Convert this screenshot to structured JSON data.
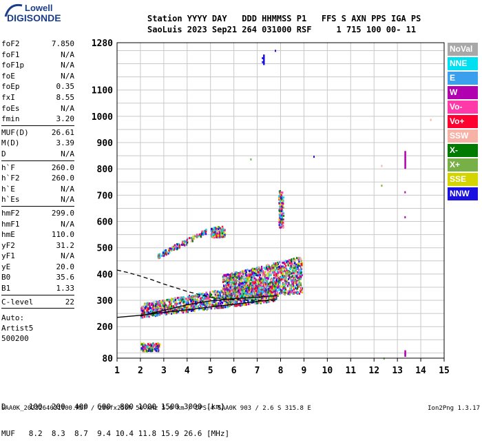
{
  "logo": {
    "line1": "Lowell",
    "line2": "DIGISONDE"
  },
  "header": {
    "line1": "Station YYYY DAY   DDD HHMMSS P1   FFS S AXN PPS IGA PS",
    "line2": "SaoLuis 2023 Sep21 264 031000 RSF     1 715 100 00- 11"
  },
  "params": [
    {
      "label": "foF2",
      "value": "7.850"
    },
    {
      "label": "foF1",
      "value": "N/A"
    },
    {
      "label": "foF1p",
      "value": "N/A"
    },
    {
      "label": "foE",
      "value": "N/A"
    },
    {
      "label": "foEp",
      "value": "0.35"
    },
    {
      "label": "fxI",
      "value": "8.55"
    },
    {
      "label": "foEs",
      "value": "N/A"
    },
    {
      "label": "fmin",
      "value": "3.20"
    },
    {
      "sep": true
    },
    {
      "label": "MUF(D)",
      "value": "26.61"
    },
    {
      "label": "M(D)",
      "value": "3.39"
    },
    {
      "label": "D",
      "value": "N/A"
    },
    {
      "sep": true
    },
    {
      "label": "h`F",
      "value": "260.0"
    },
    {
      "label": "h`F2",
      "value": "260.0"
    },
    {
      "label": "h`E",
      "value": "N/A"
    },
    {
      "label": "h`Es",
      "value": "N/A"
    },
    {
      "sep": true
    },
    {
      "label": "hmF2",
      "value": "299.0"
    },
    {
      "label": "hmF1",
      "value": "N/A"
    },
    {
      "label": "hmE",
      "value": "110.0"
    },
    {
      "label": "yF2",
      "value": "31.2"
    },
    {
      "label": "yF1",
      "value": "N/A"
    },
    {
      "label": "yE",
      "value": "20.0"
    },
    {
      "label": "B0",
      "value": "35.6"
    },
    {
      "label": "B1",
      "value": "1.33"
    },
    {
      "sep": true
    },
    {
      "label": "C-level",
      "value": "22"
    },
    {
      "sep": true
    }
  ],
  "auto": [
    "Auto:",
    "Artist5",
    "500200"
  ],
  "legend": [
    {
      "label": "NoVal",
      "color": "#a8a8a8"
    },
    {
      "label": "NNE",
      "color": "#00e0f0"
    },
    {
      "label": "E",
      "color": "#3aa0ee"
    },
    {
      "label": "W",
      "color": "#b000b0"
    },
    {
      "label": "Vo-",
      "color": "#ff3aa8"
    },
    {
      "label": "Vo+",
      "color": "#ff0030"
    },
    {
      "label": "SSW",
      "color": "#f7b2a8"
    },
    {
      "label": "X-",
      "color": "#007a00"
    },
    {
      "label": "X+",
      "color": "#78b048"
    },
    {
      "label": "SSE",
      "color": "#d4d400"
    },
    {
      "label": "NNW",
      "color": "#1a10e0"
    }
  ],
  "table": {
    "line1": "D     100  200  400  600  800 1000 1500 3000 [km]",
    "line2": "MUF   8.2  8.3  8.7  9.4 10.4 11.8 15.9 26.6 [MHz]"
  },
  "footer": {
    "left": "SAA0K_2023264031000.RSF / 280fx256h 50 kHz 5.0 km / DPS-4 SAA0K 903 / 2.6 S 315.8 E",
    "right": "Ion2Png 1.3.17"
  },
  "chart_data": {
    "type": "scatter",
    "title": "",
    "xlabel": "",
    "ylabel": "",
    "xlim": [
      1,
      15
    ],
    "ylim": [
      80,
      1280
    ],
    "x_ticks": [
      1,
      2,
      3,
      4,
      5,
      6,
      7,
      8,
      9,
      10,
      11,
      12,
      13,
      14,
      15
    ],
    "y_ticks": [
      80,
      200,
      300,
      400,
      500,
      600,
      700,
      800,
      900,
      1000,
      1100,
      1280
    ],
    "grid": true,
    "traces": [
      {
        "name": "",
        "style": "solid",
        "points": [
          [
            1,
            235
          ],
          [
            2,
            243
          ],
          [
            3,
            254
          ],
          [
            4,
            264
          ],
          [
            5,
            275
          ],
          [
            6,
            285
          ],
          [
            7,
            296
          ],
          [
            7.85,
            305
          ]
        ]
      },
      {
        "name": "",
        "style": "solid",
        "points": [
          [
            2,
            240
          ],
          [
            3,
            262
          ],
          [
            4,
            283
          ],
          [
            5,
            298
          ],
          [
            6,
            306
          ],
          [
            7,
            312
          ],
          [
            7.85,
            318
          ]
        ]
      },
      {
        "name": "",
        "style": "dashed",
        "points": [
          [
            1,
            415
          ],
          [
            1.5,
            405
          ],
          [
            2,
            392
          ],
          [
            2.5,
            378
          ],
          [
            3,
            362
          ],
          [
            3.5,
            348
          ],
          [
            4,
            334
          ],
          [
            4.5,
            322
          ],
          [
            5,
            312
          ],
          [
            5.5,
            306
          ],
          [
            6,
            302
          ],
          [
            7,
            300
          ],
          [
            7.85,
            298
          ]
        ]
      }
    ],
    "echo_regions": [
      {
        "x": [
          2.0,
          7.8
        ],
        "y_lo": [
          238,
          300
        ],
        "y_hi": [
          290,
          380
        ],
        "density": "high"
      },
      {
        "x": [
          5.5,
          8.9
        ],
        "y_lo": [
          300,
          330
        ],
        "y_hi": [
          400,
          470
        ],
        "density": "high"
      },
      {
        "x": [
          2.7,
          4.8
        ],
        "y_lo": [
          460,
          555
        ],
        "y_hi": [
          480,
          575
        ],
        "density": "low"
      },
      {
        "x": [
          5.0,
          5.6
        ],
        "y_lo": [
          540,
          545
        ],
        "y_hi": [
          580,
          585
        ],
        "density": "low"
      },
      {
        "x": [
          2.0,
          2.8
        ],
        "y_lo": [
          110,
          110
        ],
        "y_hi": [
          140,
          140
        ],
        "density": "medium"
      },
      {
        "x": [
          7.9,
          8.1
        ],
        "y_lo": [
          580,
          580
        ],
        "y_hi": [
          720,
          720
        ],
        "density": "low"
      }
    ],
    "isolated_echoes": [
      {
        "x": 7.2,
        "y": 1210,
        "color": "#1a10e0"
      },
      {
        "x": 7.2,
        "y": 1225,
        "color": "#1a10e0"
      },
      {
        "x": 7.75,
        "y": 1253,
        "color": "#1a10e0"
      },
      {
        "x": 9.4,
        "y": 850,
        "color": "#1a10e0"
      },
      {
        "x": 12.3,
        "y": 815,
        "color": "#f7b2a8"
      },
      {
        "x": 12.3,
        "y": 740,
        "color": "#78b048"
      },
      {
        "x": 14.4,
        "y": 990,
        "color": "#f7b2a8"
      },
      {
        "x": 6.7,
        "y": 840,
        "color": "#78b048"
      },
      {
        "x": 13.3,
        "y": 715,
        "color": "#b000b0"
      },
      {
        "x": 13.3,
        "y": 620,
        "color": "#b000b0"
      },
      {
        "x": 13.3,
        "y": 100,
        "color": "#b000b0"
      },
      {
        "x": 12.4,
        "y": 82,
        "color": "#78b048"
      }
    ],
    "vertical_bars": [
      {
        "x": 13.3,
        "y0": 800,
        "y1": 868,
        "color": "#b000b0"
      },
      {
        "x": 7.25,
        "y0": 1195,
        "y1": 1235,
        "color": "#1a10e0"
      },
      {
        "x": 13.3,
        "y0": 85,
        "y1": 110,
        "color": "#b000b0"
      }
    ]
  }
}
